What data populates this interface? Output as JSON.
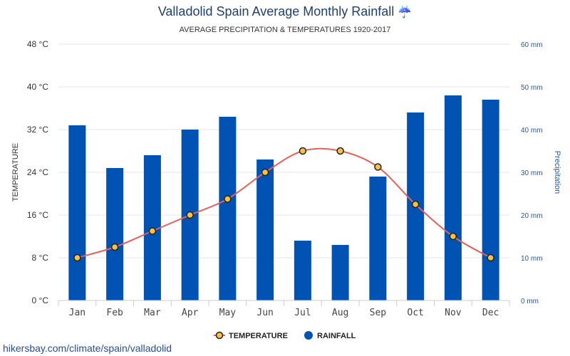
{
  "header": {
    "title": "Valladolid Spain Average Monthly Rainfall",
    "subtitle": "AVERAGE PRECIPITATION & TEMPERATURES 1920-2017"
  },
  "footer": {
    "link_text": "hikersbay.com/climate/spain/valladolid"
  },
  "colors": {
    "bar": "#0053b3",
    "line": "#e8605a",
    "marker_fill": "#f5c242",
    "marker_stroke": "#222222",
    "grid": "#e6e6e6"
  },
  "chart_data": {
    "type": "bar",
    "title": "Valladolid Spain Average Monthly Rainfall",
    "subtitle": "AVERAGE PRECIPITATION & TEMPERATURES 1920-2017",
    "categories": [
      "Jan",
      "Feb",
      "Mar",
      "Apr",
      "May",
      "Jun",
      "Jul",
      "Aug",
      "Sep",
      "Oct",
      "Nov",
      "Dec"
    ],
    "series": [
      {
        "name": "TEMPERATURE",
        "type": "line",
        "axis": "left",
        "values": [
          8,
          10,
          13,
          16,
          19,
          24,
          28,
          28,
          25,
          18,
          12,
          8
        ]
      },
      {
        "name": "RAINFALL",
        "type": "bar",
        "axis": "right",
        "values": [
          41,
          31,
          34,
          40,
          43,
          33,
          14,
          13,
          29,
          44,
          48,
          47
        ]
      }
    ],
    "ylabel": "TEMPERATURE",
    "y2label": "Precipitation",
    "ylim": [
      0,
      48
    ],
    "y2lim": [
      0,
      60
    ],
    "yticks": [
      "0 °C",
      "8 °C",
      "16 °C",
      "24 °C",
      "32 °C",
      "40 °C",
      "48 °C"
    ],
    "y2ticks": [
      "0 mm",
      "10 mm",
      "20 mm",
      "30 mm",
      "40 mm",
      "50 mm",
      "60 mm"
    ],
    "grid": true,
    "legend_position": "bottom"
  }
}
